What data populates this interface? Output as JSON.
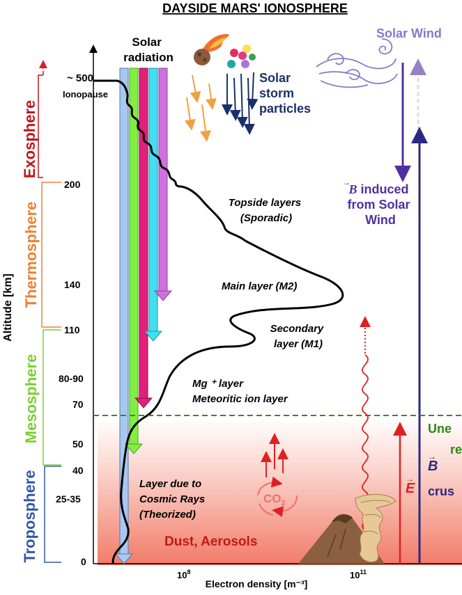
{
  "title": "DAYSIDE MARS' IONOSPHERE",
  "axes": {
    "y_label": "Altitude [km]",
    "x_label": "Electron density [m⁻³]",
    "x_tick_1e8": "10",
    "x_tick_1e8_exp": "8",
    "x_tick_1e11": "10",
    "x_tick_1e11_exp": "11",
    "y_ticks": [
      {
        "label": "~ 500",
        "km": 500
      },
      {
        "label": "200",
        "km": 200
      },
      {
        "label": "140",
        "km": 140
      },
      {
        "label": "110",
        "km": 110
      },
      {
        "label": "80-90",
        "km": 85
      },
      {
        "label": "70",
        "km": 70
      },
      {
        "label": "50",
        "km": 50
      },
      {
        "label": "40",
        "km": 40
      },
      {
        "label": "25-35",
        "km": 30
      },
      {
        "label": "0",
        "km": 0
      }
    ],
    "ionopause_label": "Ionopause"
  },
  "regions": [
    {
      "name": "Exosphere",
      "color": "#c0141c"
    },
    {
      "name": "Thermosphere",
      "color": "#f08030"
    },
    {
      "name": "Mesosphere",
      "color": "#78d030"
    },
    {
      "name": "Troposphere",
      "color": "#3058a8"
    }
  ],
  "solar_radiation": {
    "label_line1": "Solar",
    "label_line2": "radiation",
    "beam_colors": [
      "#a8c8f0",
      "#80f040",
      "#e0207a",
      "#40e0f0",
      "#d070e0"
    ]
  },
  "solar_storm": {
    "line1": "Solar",
    "line2": "storm",
    "line3": "particles",
    "color": "#1a3068"
  },
  "solar_wind": {
    "label": "Solar Wind",
    "color": "#8878c8"
  },
  "b_induced": {
    "symbol": "B",
    "line1": "induced",
    "line2": "from Solar",
    "line3": "Wind",
    "color": "#5030a0"
  },
  "layers": {
    "topside_1": "Topside layers",
    "topside_2": "(Sporadic)",
    "main": "Main layer (M2)",
    "secondary_1": "Secondary",
    "secondary_2": "layer (M1)",
    "mg_1": "Mg ⁺ layer",
    "mg_2": "Meteoritic ion layer",
    "cosmic_1": "Layer due to",
    "cosmic_2": "Cosmic Rays",
    "cosmic_3": "(Theorized)"
  },
  "surface": {
    "dust": "Dust, Aerosols",
    "co2": "CO",
    "co2_sub": "2",
    "e_symbol": "E",
    "b_symbol": "B",
    "crustal_partial": "crus",
    "uneven_partial": "Une",
    "re_partial": "re"
  },
  "colors": {
    "profile": "#000000",
    "boundary_dash": "#3a8a1a",
    "red": "#e02020",
    "ground_red": "#f46a5a",
    "navy": "#2a2a80"
  }
}
